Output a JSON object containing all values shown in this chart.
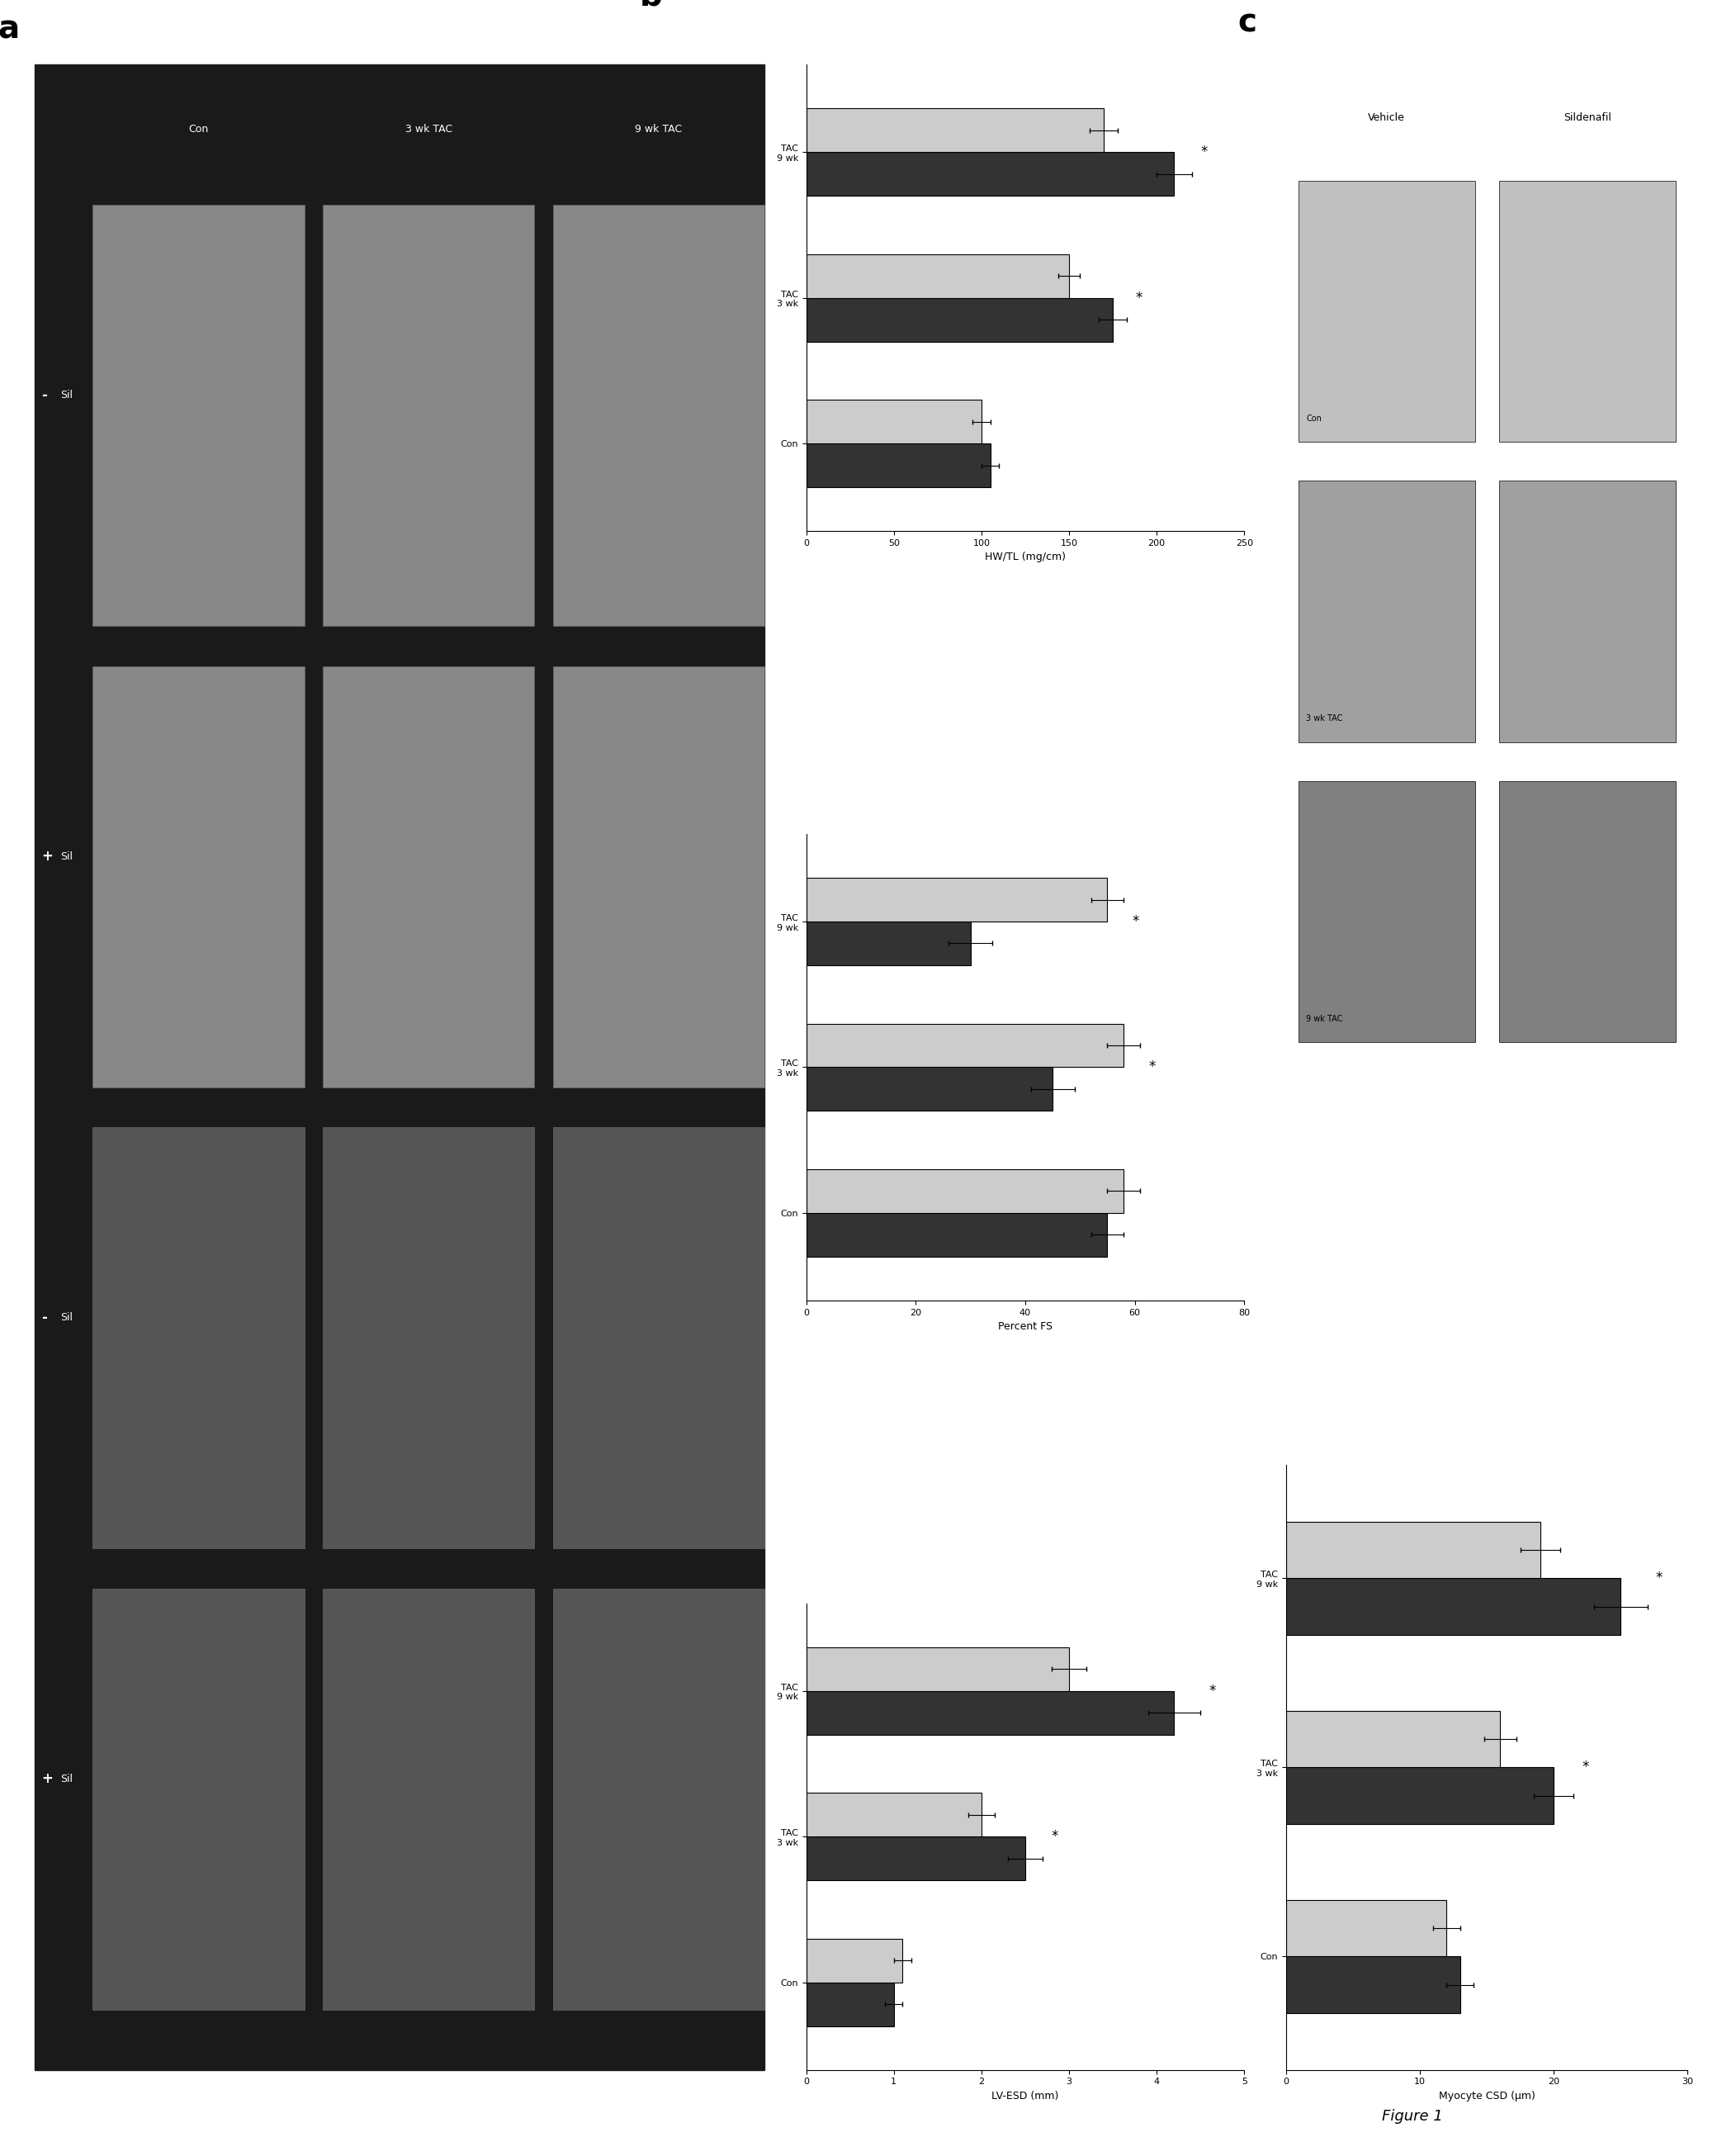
{
  "panel_b": {
    "title": "b",
    "HW_TL": {
      "ylabel": "HW/TL (mg/cm)",
      "xlim": [
        0,
        250
      ],
      "xticks": [
        0,
        50,
        100,
        150,
        200,
        250
      ],
      "groups": [
        "Con",
        "TAC\n3 wk",
        "TAC\n9 wk"
      ],
      "vehicle": [
        105,
        175,
        210
      ],
      "sildenafil": [
        100,
        150,
        170
      ],
      "vehicle_err": [
        5,
        8,
        10
      ],
      "sildenafil_err": [
        5,
        6,
        8
      ],
      "sig": [
        false,
        true,
        true
      ]
    },
    "PercentFS": {
      "ylabel": "Percent FS",
      "xlim": [
        0,
        80
      ],
      "xticks": [
        0,
        20,
        40,
        60,
        80
      ],
      "groups": [
        "Con",
        "TAC\n3 wk",
        "TAC\n9 wk"
      ],
      "vehicle": [
        55,
        45,
        30
      ],
      "sildenafil": [
        58,
        58,
        55
      ],
      "vehicle_err": [
        3,
        4,
        4
      ],
      "sildenafil_err": [
        3,
        3,
        3
      ],
      "sig": [
        false,
        true,
        true
      ]
    },
    "LV_ESD": {
      "ylabel": "LV-ESD (mm)",
      "xlim": [
        0,
        5
      ],
      "xticks": [
        0,
        1,
        2,
        3,
        4,
        5
      ],
      "groups": [
        "Con",
        "TAC\n3 wk",
        "TAC\n9 wk"
      ],
      "vehicle": [
        1.0,
        2.5,
        4.2
      ],
      "sildenafil": [
        1.1,
        2.0,
        3.0
      ],
      "vehicle_err": [
        0.1,
        0.2,
        0.3
      ],
      "sildenafil_err": [
        0.1,
        0.15,
        0.2
      ],
      "sig": [
        false,
        true,
        true
      ]
    }
  },
  "panel_c": {
    "title": "c",
    "MyocyteCSD": {
      "ylabel": "Myocyte CSD (μm)",
      "xlim": [
        0,
        30
      ],
      "xticks": [
        0,
        10,
        20,
        30
      ],
      "groups": [
        "Con",
        "TAC\n3 wk",
        "TAC\n9 wk"
      ],
      "vehicle": [
        13,
        20,
        25
      ],
      "sildenafil": [
        12,
        16,
        19
      ],
      "vehicle_err": [
        1.0,
        1.5,
        2.0
      ],
      "sildenafil_err": [
        1.0,
        1.2,
        1.5
      ],
      "sig": [
        false,
        true,
        true
      ]
    }
  },
  "figure_label": "Figure 1",
  "bg_color": "#ffffff",
  "bar_colors": {
    "vehicle": "#333333",
    "sildenafil": "#cccccc"
  },
  "bar_edgecolor": "#000000",
  "panel_a_bg": "#111111",
  "col_labels_a": [
    "Con",
    "3 wk TAC",
    "9 wk TAC"
  ],
  "row_labels_a": [
    "-",
    "+",
    "-",
    "+"
  ],
  "hist_col_labels": [
    "Vehicle",
    "Sildenafil"
  ],
  "hist_row_labels": [
    "Con",
    "3 wk TAC",
    "9 wk TAC"
  ]
}
